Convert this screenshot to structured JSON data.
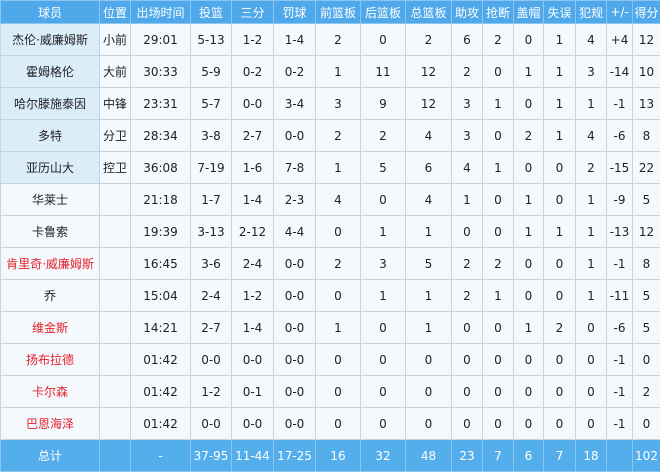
{
  "colors": {
    "header_bg": "#4ea8ea",
    "starter_name_bg": "#dcedfa",
    "row_bg": "#f4f9fd",
    "red_name": "#e3222b",
    "total_bg": "#55aeec"
  },
  "headers": [
    "球员",
    "位置",
    "出场时间",
    "投篮",
    "三分",
    "罚球",
    "前篮板",
    "后篮板",
    "总篮板",
    "助攻",
    "抢断",
    "盖帽",
    "失误",
    "犯规",
    "+/-",
    "得分"
  ],
  "rows": [
    {
      "starter": true,
      "red": false,
      "cells": [
        "杰伦·威廉姆斯",
        "小前",
        "29:01",
        "5-13",
        "1-2",
        "1-4",
        "2",
        "0",
        "2",
        "6",
        "2",
        "0",
        "1",
        "4",
        "+4",
        "12"
      ]
    },
    {
      "starter": true,
      "red": false,
      "cells": [
        "霍姆格伦",
        "大前",
        "30:33",
        "5-9",
        "0-2",
        "0-2",
        "1",
        "11",
        "12",
        "2",
        "0",
        "1",
        "1",
        "3",
        "-14",
        "10"
      ]
    },
    {
      "starter": true,
      "red": false,
      "cells": [
        "哈尔滕施泰因",
        "中锋",
        "23:31",
        "5-7",
        "0-0",
        "3-4",
        "3",
        "9",
        "12",
        "3",
        "1",
        "0",
        "1",
        "1",
        "-1",
        "13"
      ]
    },
    {
      "starter": true,
      "red": false,
      "cells": [
        "多特",
        "分卫",
        "28:34",
        "3-8",
        "2-7",
        "0-0",
        "2",
        "2",
        "4",
        "3",
        "0",
        "2",
        "1",
        "4",
        "-6",
        "8"
      ]
    },
    {
      "starter": true,
      "red": false,
      "cells": [
        "亚历山大",
        "控卫",
        "36:08",
        "7-19",
        "1-6",
        "7-8",
        "1",
        "5",
        "6",
        "4",
        "1",
        "0",
        "0",
        "2",
        "-15",
        "22"
      ]
    },
    {
      "starter": false,
      "red": false,
      "cells": [
        "华莱士",
        "",
        "21:18",
        "1-7",
        "1-4",
        "2-3",
        "4",
        "0",
        "4",
        "1",
        "0",
        "1",
        "0",
        "1",
        "-9",
        "5"
      ]
    },
    {
      "starter": false,
      "red": false,
      "cells": [
        "卡鲁索",
        "",
        "19:39",
        "3-13",
        "2-12",
        "4-4",
        "0",
        "1",
        "1",
        "0",
        "0",
        "1",
        "1",
        "1",
        "-13",
        "12"
      ]
    },
    {
      "starter": false,
      "red": true,
      "cells": [
        "肯里奇·威廉姆斯",
        "",
        "16:45",
        "3-6",
        "2-4",
        "0-0",
        "2",
        "3",
        "5",
        "2",
        "2",
        "0",
        "0",
        "1",
        "-1",
        "8"
      ]
    },
    {
      "starter": false,
      "red": false,
      "cells": [
        "乔",
        "",
        "15:04",
        "2-4",
        "1-2",
        "0-0",
        "0",
        "1",
        "1",
        "2",
        "1",
        "0",
        "0",
        "1",
        "-11",
        "5"
      ]
    },
    {
      "starter": false,
      "red": true,
      "cells": [
        "维金斯",
        "",
        "14:21",
        "2-7",
        "1-4",
        "0-0",
        "1",
        "0",
        "1",
        "0",
        "0",
        "1",
        "2",
        "0",
        "-6",
        "5"
      ]
    },
    {
      "starter": false,
      "red": true,
      "cells": [
        "扬布拉德",
        "",
        "01:42",
        "0-0",
        "0-0",
        "0-0",
        "0",
        "0",
        "0",
        "0",
        "0",
        "0",
        "0",
        "0",
        "-1",
        "0"
      ]
    },
    {
      "starter": false,
      "red": true,
      "cells": [
        "卡尔森",
        "",
        "01:42",
        "1-2",
        "0-1",
        "0-0",
        "0",
        "0",
        "0",
        "0",
        "0",
        "0",
        "0",
        "0",
        "-1",
        "2"
      ]
    },
    {
      "starter": false,
      "red": true,
      "cells": [
        "巴恩海泽",
        "",
        "01:42",
        "0-0",
        "0-0",
        "0-0",
        "0",
        "0",
        "0",
        "0",
        "0",
        "0",
        "0",
        "0",
        "-1",
        "0"
      ]
    }
  ],
  "total": [
    "总计",
    "",
    "-",
    "37-95",
    "11-44",
    "17-25",
    "16",
    "32",
    "48",
    "23",
    "7",
    "6",
    "7",
    "18",
    "",
    "102"
  ]
}
